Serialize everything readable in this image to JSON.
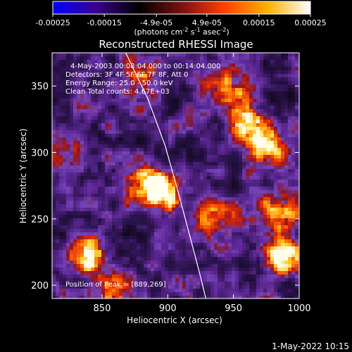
{
  "colorbar": {
    "tick_labels": [
      "-0.00025",
      "-0.00015",
      "-4.9e-05",
      "4.9e-05",
      "0.00015",
      "0.00025"
    ],
    "tick_values": [
      -0.00025,
      -0.00015,
      -4.9e-05,
      4.9e-05,
      0.00015,
      0.00025
    ],
    "range": [
      -0.00025,
      0.00025
    ],
    "units_pre": "(photons cm",
    "units_sup1": "-2",
    "units_mid1": " s",
    "units_sup2": "-1",
    "units_mid2": " asec",
    "units_sup3": "-2",
    "units_post": ")",
    "colors": [
      "#0000ff",
      "#3a0090",
      "#000000",
      "#7a1010",
      "#ff4000",
      "#ffb000",
      "#ffffff"
    ]
  },
  "chart_data": {
    "type": "heatmap",
    "title": "Reconstructed RHESSI Image",
    "xlabel": "Heliocentric X (arcsec)",
    "ylabel": "Heliocentric Y (arcsec)",
    "xlim": [
      812,
      1000
    ],
    "ylim": [
      190,
      375
    ],
    "x_ticks": [
      850,
      900,
      950,
      1000
    ],
    "y_ticks": [
      200,
      250,
      300,
      350
    ],
    "x_tick_labels": [
      "850",
      "900",
      "950",
      "1000"
    ],
    "y_tick_labels": [
      "200",
      "250",
      "300",
      "350"
    ],
    "limb_curve": [
      [
        868,
        375
      ],
      [
        885,
        340
      ],
      [
        898,
        305
      ],
      [
        908,
        270
      ],
      [
        916,
        240
      ],
      [
        924,
        210
      ],
      [
        929,
        190
      ]
    ],
    "peak": [
      889,
      269
    ],
    "hot_spots": [
      {
        "x": 896,
        "y": 272,
        "level": 1.0
      },
      {
        "x": 840,
        "y": 222,
        "level": 0.95
      },
      {
        "x": 880,
        "y": 275,
        "level": 0.75
      },
      {
        "x": 960,
        "y": 325,
        "level": 0.85
      },
      {
        "x": 975,
        "y": 305,
        "level": 0.8
      },
      {
        "x": 948,
        "y": 350,
        "level": 0.7
      },
      {
        "x": 988,
        "y": 220,
        "level": 0.85
      },
      {
        "x": 985,
        "y": 255,
        "level": 0.7
      },
      {
        "x": 860,
        "y": 195,
        "level": 0.65
      },
      {
        "x": 880,
        "y": 360,
        "level": 0.55
      },
      {
        "x": 935,
        "y": 250,
        "level": 0.6
      },
      {
        "x": 822,
        "y": 300,
        "level": 0.55
      }
    ],
    "annotations": [
      "4-May-2003 00:08:04.000 to 00:14:04.000",
      "Detectors: 3F 4F 5F 6F 7F 8F, Att 0",
      "Energy Range: 25.0 - 50.0 keV",
      "Clean     Total counts: 4.67E+03"
    ],
    "peak_label": "Position of Peak = [889,269]"
  },
  "footer": {
    "timestamp": "1-May-2022 10:15"
  }
}
